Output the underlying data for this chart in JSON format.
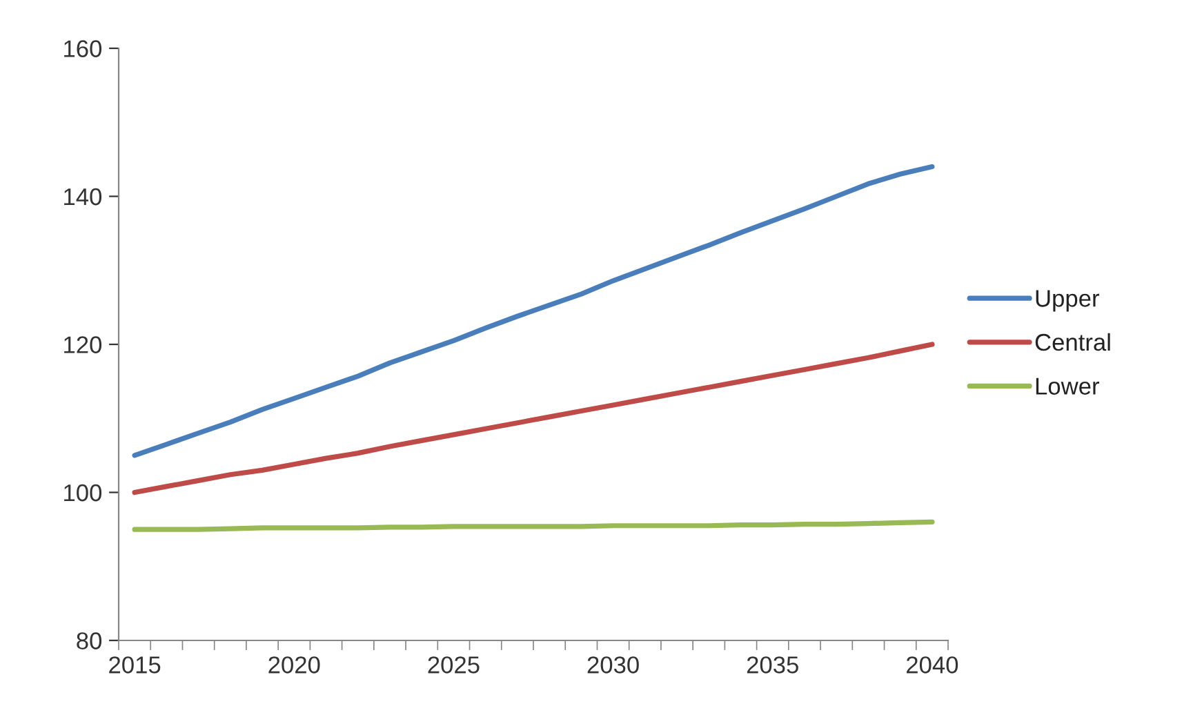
{
  "chart_data": {
    "type": "line",
    "categories": [
      "2015",
      null,
      null,
      null,
      null,
      "2020",
      null,
      null,
      null,
      null,
      "2025",
      null,
      null,
      null,
      null,
      "2030",
      null,
      null,
      null,
      null,
      "2035",
      null,
      null,
      null,
      null,
      "2040"
    ],
    "series": [
      {
        "name": "Upper",
        "color": "#4a7ebb",
        "values": [
          105,
          106.5,
          108,
          109.5,
          111.2,
          112.7,
          114.2,
          115.7,
          117.5,
          119,
          120.5,
          122.2,
          123.8,
          125.3,
          126.8,
          128.6,
          130.2,
          131.8,
          133.4,
          135.1,
          136.7,
          138.3,
          140,
          141.7,
          143,
          144
        ]
      },
      {
        "name": "Central",
        "color": "#be4b48",
        "values": [
          100,
          100.8,
          101.6,
          102.4,
          103,
          103.8,
          104.6,
          105.3,
          106.2,
          107,
          107.8,
          108.6,
          109.4,
          110.2,
          111,
          111.8,
          112.6,
          113.4,
          114.2,
          115,
          115.8,
          116.6,
          117.4,
          118.2,
          119.1,
          120
        ]
      },
      {
        "name": "Lower",
        "color": "#98b954",
        "values": [
          95,
          95,
          95,
          95.1,
          95.2,
          95.2,
          95.2,
          95.2,
          95.3,
          95.3,
          95.4,
          95.4,
          95.4,
          95.4,
          95.4,
          95.5,
          95.5,
          95.5,
          95.5,
          95.6,
          95.6,
          95.7,
          95.7,
          95.8,
          95.9,
          96
        ]
      }
    ],
    "ylim": [
      80,
      160
    ],
    "yticks": [
      80,
      100,
      120,
      140,
      160
    ],
    "grid": false,
    "legend": "right",
    "marker": "none",
    "line_style": "solid"
  }
}
